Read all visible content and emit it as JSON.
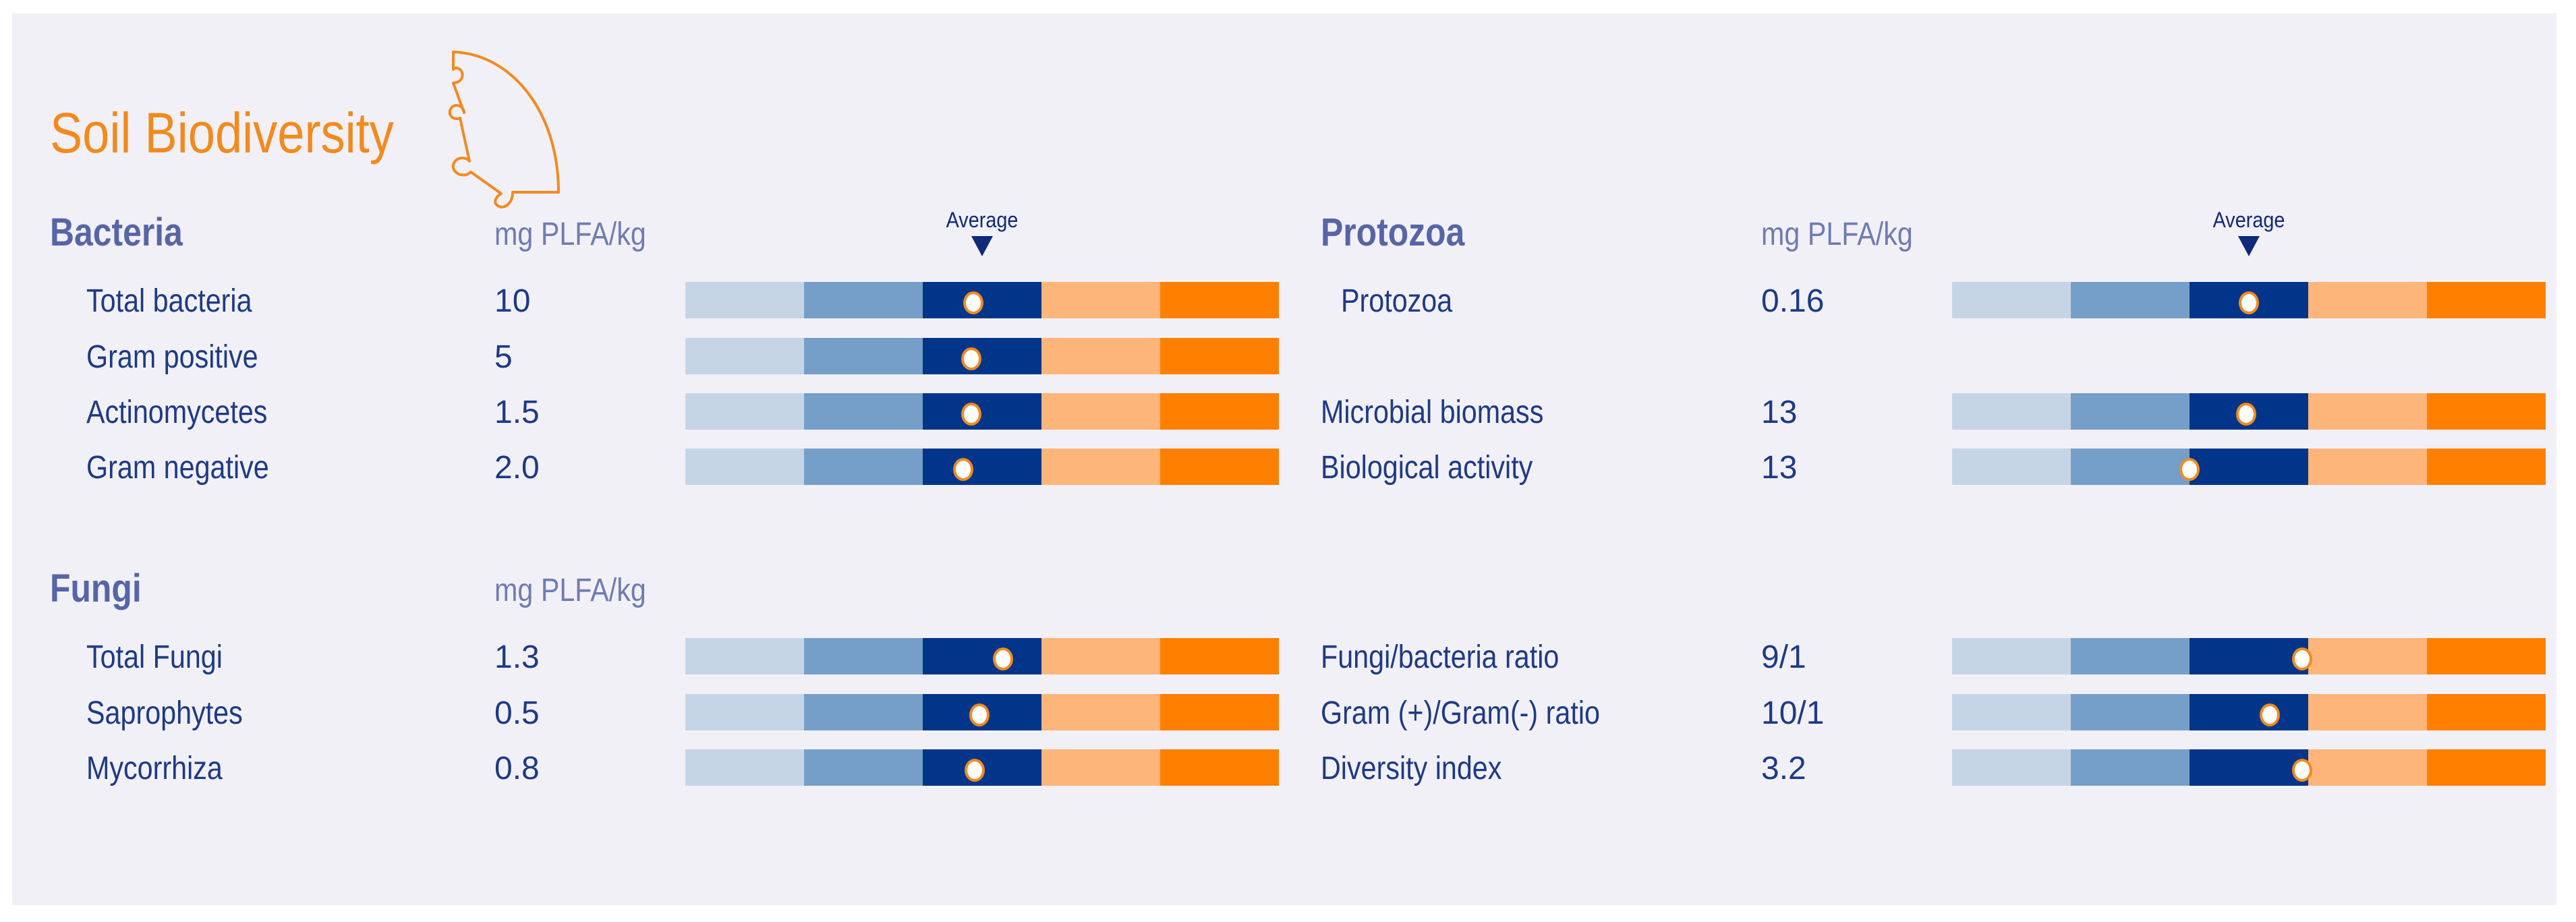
{
  "title": "Soil Biodiversity",
  "colors": {
    "accent": "#f28a1e",
    "heading": "#5665a6",
    "text": "#1d3a85",
    "scale": [
      "#c6d5e5",
      "#759fc8",
      "#00358a",
      "#fdb57a",
      "#ff7f00"
    ]
  },
  "icon": "puzzle-quarter-circle-icon",
  "average_label": "Average",
  "chart_data": {
    "type": "bar",
    "scale_note": "five-band indicator scale, 0 = left end, 1 = right end; middle dark-blue band is Average",
    "bands": 5,
    "sections": [
      {
        "key": "bacteria",
        "heading": "Bacteria",
        "unit": "mg PLFA/kg",
        "show_average": true,
        "rows": [
          {
            "label": "Total bacteria",
            "value": "10",
            "position": 0.485
          },
          {
            "label": "Gram positive",
            "value": "5",
            "position": 0.482
          },
          {
            "label": "Actinomycetes",
            "value": "1.5",
            "position": 0.482
          },
          {
            "label": "Gram negative",
            "value": "2.0",
            "position": 0.468
          }
        ]
      },
      {
        "key": "protozoa",
        "heading": "Protozoa",
        "unit": "mg PLFA/kg",
        "show_average": true,
        "rows": [
          {
            "label": "Protozoa",
            "value": "0.16",
            "position": 0.5
          }
        ]
      },
      {
        "key": "activity",
        "heading": "",
        "unit": "",
        "show_average": false,
        "rows": [
          {
            "label": "Microbial biomass",
            "value": "13",
            "position": 0.495
          },
          {
            "label": "Biological activity",
            "value": "13",
            "position": 0.4
          }
        ]
      },
      {
        "key": "fungi",
        "heading": "Fungi",
        "unit": "mg PLFA/kg",
        "show_average": false,
        "rows": [
          {
            "label": "Total Fungi",
            "value": "1.3",
            "position": 0.535
          },
          {
            "label": "Saprophytes",
            "value": "0.5",
            "position": 0.495
          },
          {
            "label": "Mycorrhiza",
            "value": "0.8",
            "position": 0.488
          }
        ]
      },
      {
        "key": "ratios",
        "heading": "",
        "unit": "",
        "show_average": false,
        "rows": [
          {
            "label": "Fungi/bacteria ratio",
            "value": "9/1",
            "position": 0.59
          },
          {
            "label": "Gram (+)/Gram(-) ratio",
            "value": "10/1",
            "position": 0.535
          },
          {
            "label": "Diversity index",
            "value": "3.2",
            "position": 0.59
          }
        ]
      }
    ]
  }
}
